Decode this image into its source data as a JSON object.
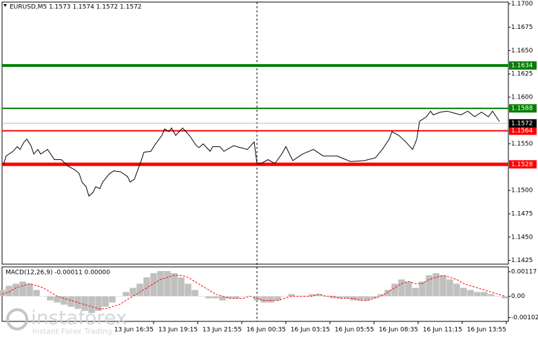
{
  "chart_data": [
    {
      "type": "line",
      "title": "EURUSD,M5  1.1573 1.1574 1.1572 1.1572",
      "x": [
        1,
        3,
        8,
        11,
        13,
        16,
        18,
        21,
        23,
        26,
        28,
        33,
        38,
        43,
        48,
        53,
        56,
        58,
        61,
        63,
        66,
        68,
        71,
        73,
        78,
        81,
        86,
        91,
        93,
        96,
        101,
        103,
        108,
        111,
        116,
        118,
        121,
        123,
        126,
        131,
        136,
        141,
        143,
        146,
        151,
        153,
        158,
        161,
        168,
        173,
        178,
        183,
        185,
        188,
        193,
        198,
        203,
        206,
        211,
        218,
        226,
        233,
        243,
        253,
        263,
        271,
        276,
        281,
        283,
        288,
        293,
        298,
        301,
        303,
        308,
        311,
        313,
        318,
        323,
        328,
        333,
        338,
        343,
        348,
        353,
        356,
        361
      ],
      "series": [
        {
          "color": "#000000",
          "values": [
            1.1528,
            1.1537,
            1.1542,
            1.1547,
            1.1544,
            1.1552,
            1.1555,
            1.1548,
            1.1539,
            1.1544,
            1.1539,
            1.1544,
            1.1533,
            1.1533,
            1.1526,
            1.1522,
            1.1518,
            1.1509,
            1.1504,
            1.1494,
            1.1498,
            1.1504,
            1.1502,
            1.1509,
            1.1518,
            1.1521,
            1.152,
            1.1515,
            1.1509,
            1.1512,
            1.1532,
            1.1541,
            1.1542,
            1.1549,
            1.1559,
            1.1566,
            1.1563,
            1.1567,
            1.1559,
            1.1567,
            1.1559,
            1.1548,
            1.1546,
            1.155,
            1.1542,
            1.1547,
            1.1547,
            1.1542,
            1.1548,
            1.1546,
            1.1544,
            1.1552,
            1.1529,
            1.1529,
            1.1533,
            1.1529,
            1.1539,
            1.1547,
            1.1532,
            1.1539,
            1.1544,
            1.1537,
            1.1537,
            1.1531,
            1.1532,
            1.1535,
            1.1544,
            1.1555,
            1.1563,
            1.1559,
            1.1552,
            1.1544,
            1.1555,
            1.1574,
            1.1579,
            1.1585,
            1.1581,
            1.1584,
            1.1585,
            1.1583,
            1.1581,
            1.1585,
            1.1579,
            1.1584,
            1.1579,
            1.1585,
            1.1574
          ]
        }
      ],
      "xlim": [
        0,
        367.5
      ],
      "ylim": [
        1.1421,
        1.1702
      ],
      "yticks": [
        {
          "value": 1.17,
          "label": "1.1700"
        },
        1.1675,
        {
          "value": 1.165,
          "label": "1.1650"
        },
        1.1625,
        {
          "value": 1.16,
          "label": "1.1600"
        },
        {
          "value": 1.155,
          "label": "1.1550"
        },
        {
          "value": 1.15,
          "label": "1.1500"
        },
        1.1475,
        {
          "value": 1.145,
          "label": "1.1450"
        },
        1.1425
      ],
      "xticks": [
        {
          "value": 110,
          "label": "13 Jun 16:35"
        },
        {
          "value": 142,
          "label": "13 Jun 19:15"
        },
        {
          "value": 174,
          "label": "13 Jun 21:55"
        },
        {
          "value": 206,
          "label": "16 Jun 00:35"
        },
        {
          "value": 238,
          "label": "16 Jun 03:15"
        },
        {
          "value": 270,
          "label": "16 Jun 05:55"
        },
        {
          "value": 302,
          "label": "16 Jun 08:35"
        },
        {
          "value": 334,
          "label": "16 Jun 11:15"
        },
        {
          "value": 366,
          "label": "16 Jun 13:55"
        }
      ],
      "levels": [
        {
          "value": 1.1634,
          "color": "#008000",
          "width": 4
        },
        {
          "value": 1.1588,
          "color": "#008000",
          "width": 2
        },
        {
          "value": 1.1564,
          "color": "#ff0000",
          "width": 2
        },
        {
          "value": 1.1528,
          "color": "#ff0000",
          "width": 5
        }
      ],
      "current_price": {
        "value": 1.1572,
        "color": "#000000"
      }
    },
    {
      "type": "macd",
      "title": "MACD(12,26,9) -0.00011 0.00000",
      "x": [
        0,
        5,
        10,
        15,
        20,
        25,
        30,
        35,
        40,
        45,
        50,
        55,
        60,
        65,
        70,
        75,
        80,
        85,
        90,
        95,
        100,
        105,
        110,
        115,
        120,
        125,
        130,
        135,
        140,
        145,
        150,
        155,
        160,
        165,
        170,
        175,
        180,
        185,
        190,
        195,
        200,
        205,
        210,
        215,
        220,
        225,
        230,
        235,
        240,
        245,
        250,
        255,
        260,
        265,
        270,
        275,
        280,
        285,
        290,
        295,
        300,
        305,
        310,
        315,
        320,
        325,
        330,
        335,
        340,
        345,
        350,
        355,
        360,
        365
      ],
      "series": [
        {
          "style": "histogram",
          "color": "#c0c0c0",
          "values": [
            0.0003,
            0.0005,
            0.0006,
            0.0007,
            0.0006,
            0.0003,
            0,
            -0.0002,
            -0.0003,
            -0.0004,
            -0.0005,
            -0.0006,
            -0.0007,
            -0.0008,
            -0.0007,
            -0.0005,
            -0.0003,
            0,
            0.0002,
            0.0004,
            0.0006,
            0.0009,
            0.0011,
            0.0012,
            0.0012,
            0.0011,
            0.0009,
            0.0006,
            0.0003,
            0,
            -0.0001,
            -0.0001,
            -0.0002,
            -0.0001,
            -0.0001,
            0,
            0,
            -0.0002,
            -0.0003,
            -0.0003,
            -0.0002,
            0,
            0.0001,
            0,
            0,
            0.0001,
            0.0001,
            0,
            -0.0001,
            -0.0001,
            -0.0001,
            -0.0002,
            -0.0002,
            -0.0002,
            -0.0001,
            0.0001,
            0.0003,
            0.0006,
            0.0008,
            0.0007,
            0.0004,
            0.0007,
            0.001,
            0.0011,
            0.001,
            0.0008,
            0.0006,
            0.0004,
            0.0003,
            0.0002,
            0.0002,
            0.0001,
            0,
            -0.0001
          ]
        },
        {
          "style": "dashed",
          "color": "#ff0000",
          "values": [
            0.0001,
            0.0002,
            0.0004,
            0.0005,
            0.0006,
            0.0005,
            0.0004,
            0.0002,
            0,
            -0.0001,
            -0.0002,
            -0.0003,
            -0.0004,
            -0.0005,
            -0.0006,
            -0.0006,
            -0.0005,
            -0.0004,
            -0.0002,
            0,
            0.0002,
            0.0004,
            0.0006,
            0.0008,
            0.0009,
            0.001,
            0.001,
            0.0009,
            0.0007,
            0.0005,
            0.0003,
            0.0001,
            0,
            -0.0001,
            -0.0001,
            -0.0001,
            0,
            -0.0001,
            -0.0002,
            -0.0002,
            -0.0002,
            -0.0001,
            0,
            0,
            0,
            0,
            0.0001,
            0,
            0,
            -0.0001,
            -0.0001,
            -0.0001,
            -0.0002,
            -0.0002,
            -0.0001,
            0,
            0.0002,
            0.0004,
            0.0006,
            0.0007,
            0.0006,
            0.0006,
            0.0008,
            0.0009,
            0.001,
            0.0009,
            0.0008,
            0.0006,
            0.0005,
            0.0004,
            0.0003,
            0.0002,
            0.0001,
            0
          ]
        }
      ],
      "xlim": [
        0,
        367.5
      ],
      "ylim": [
        -0.0012,
        0.0014
      ],
      "yticks": [
        0.00117,
        {
          "value": 0,
          "label": "0.00"
        },
        -0.00102
      ]
    }
  ],
  "watermark": {
    "brand": "instaforex",
    "tagline": "Instant Forex Trading"
  }
}
